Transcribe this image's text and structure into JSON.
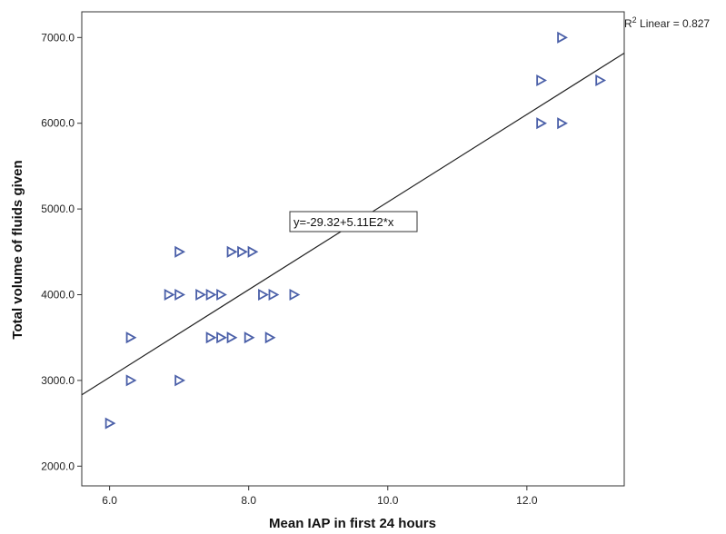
{
  "chart_data": {
    "type": "scatter",
    "title": "",
    "xlabel": "Mean IAP in first 24 hours",
    "ylabel": "Total volume of fluids given",
    "xlim": [
      5.6,
      13.4
    ],
    "ylim": [
      1770,
      7300
    ],
    "x_ticks": [
      "6.0",
      "8.0",
      "10.0",
      "12.0"
    ],
    "y_ticks": [
      "2000.0",
      "3000.0",
      "4000.0",
      "5000.0",
      "6000.0",
      "7000.0"
    ],
    "x_tick_values": [
      6,
      8,
      10,
      12
    ],
    "y_tick_values": [
      2000,
      3000,
      4000,
      5000,
      6000,
      7000
    ],
    "grid": false,
    "marker": "right-triangle",
    "marker_color": "#4a5fa8",
    "points": [
      {
        "x": 6.0,
        "y": 2500
      },
      {
        "x": 6.3,
        "y": 3000
      },
      {
        "x": 6.3,
        "y": 3500
      },
      {
        "x": 6.85,
        "y": 4000
      },
      {
        "x": 7.0,
        "y": 4000
      },
      {
        "x": 7.0,
        "y": 4500
      },
      {
        "x": 7.0,
        "y": 3000
      },
      {
        "x": 7.3,
        "y": 4000
      },
      {
        "x": 7.45,
        "y": 4000
      },
      {
        "x": 7.6,
        "y": 4000
      },
      {
        "x": 7.45,
        "y": 3500
      },
      {
        "x": 7.6,
        "y": 3500
      },
      {
        "x": 7.75,
        "y": 3500
      },
      {
        "x": 7.75,
        "y": 4500
      },
      {
        "x": 7.9,
        "y": 4500
      },
      {
        "x": 8.05,
        "y": 4500
      },
      {
        "x": 8.0,
        "y": 3500
      },
      {
        "x": 8.3,
        "y": 3500
      },
      {
        "x": 8.2,
        "y": 4000
      },
      {
        "x": 8.35,
        "y": 4000
      },
      {
        "x": 8.65,
        "y": 4000
      },
      {
        "x": 12.2,
        "y": 6500
      },
      {
        "x": 12.2,
        "y": 6000
      },
      {
        "x": 12.5,
        "y": 6000
      },
      {
        "x": 12.5,
        "y": 7000
      },
      {
        "x": 13.05,
        "y": 6500
      }
    ],
    "fit_line": {
      "intercept": -29.32,
      "slope": 511
    },
    "equation_label": "y=-29.32+5.11E2*x",
    "r2_prefix": "R",
    "r2_sup": "2",
    "r2_rest": " Linear = 0.827"
  }
}
